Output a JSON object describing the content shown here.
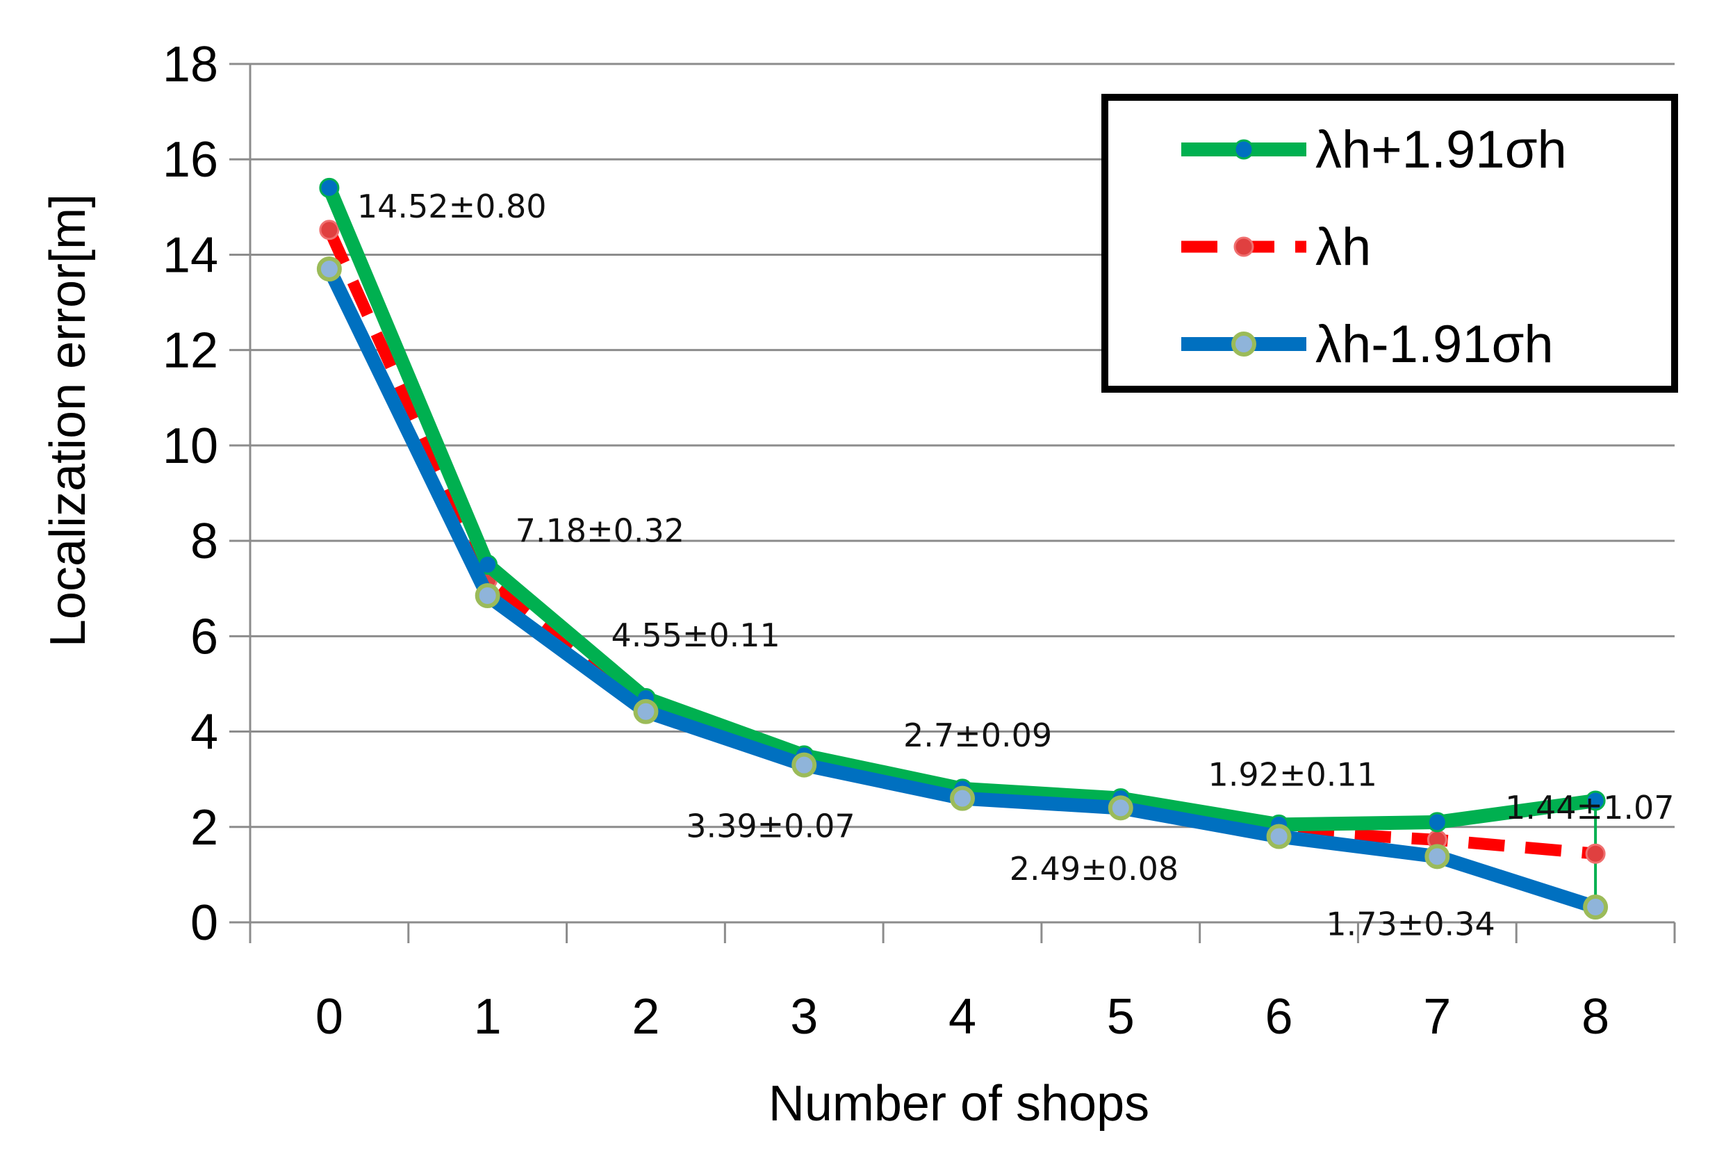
{
  "chart_data": {
    "type": "line",
    "xlabel": "Number of shops",
    "ylabel": "Localization error[m]",
    "categories": [
      "0",
      "1",
      "2",
      "3",
      "4",
      "5",
      "6",
      "7",
      "8"
    ],
    "ylim": [
      0,
      18
    ],
    "yticks": [
      "0",
      "2",
      "4",
      "6",
      "8",
      "10",
      "12",
      "14",
      "16",
      "18"
    ],
    "grid": "horizontal",
    "legend_position": "top-right",
    "series": [
      {
        "name": "λh+1.91σh",
        "values": [
          15.4,
          7.5,
          4.7,
          3.5,
          2.8,
          2.6,
          2.05,
          2.1,
          2.55
        ],
        "line_color": "#00B050",
        "marker_color": "#0070C0",
        "style": "solid"
      },
      {
        "name": "λh",
        "values": [
          14.52,
          7.18,
          4.55,
          3.39,
          2.7,
          2.49,
          1.92,
          1.73,
          1.44
        ],
        "line_color": "#FF0000",
        "marker_color": "#E04040",
        "style": "dashed"
      },
      {
        "name": "λh-1.91σh",
        "values": [
          13.7,
          6.85,
          4.42,
          3.3,
          2.6,
          2.4,
          1.8,
          1.38,
          0.32
        ],
        "line_color": "#0070C0",
        "marker_color": "#9BBB59",
        "style": "solid"
      }
    ],
    "annotations": [
      {
        "text": "14.52±0.80",
        "x": 0,
        "y": 14.52
      },
      {
        "text": "7.18±0.32",
        "x": 1,
        "y": 7.18
      },
      {
        "text": "4.55±0.11",
        "x": 2,
        "y": 4.55
      },
      {
        "text": "3.39±0.07",
        "x": 3,
        "y": 3.39
      },
      {
        "text": "2.7±0.09",
        "x": 4,
        "y": 2.7
      },
      {
        "text": "2.49±0.08",
        "x": 5,
        "y": 2.49
      },
      {
        "text": "1.92±0.11",
        "x": 6,
        "y": 1.92
      },
      {
        "text": "1.73±0.34",
        "x": 7,
        "y": 1.73
      },
      {
        "text": "1.44±1.07",
        "x": 8,
        "y": 1.44
      }
    ]
  }
}
